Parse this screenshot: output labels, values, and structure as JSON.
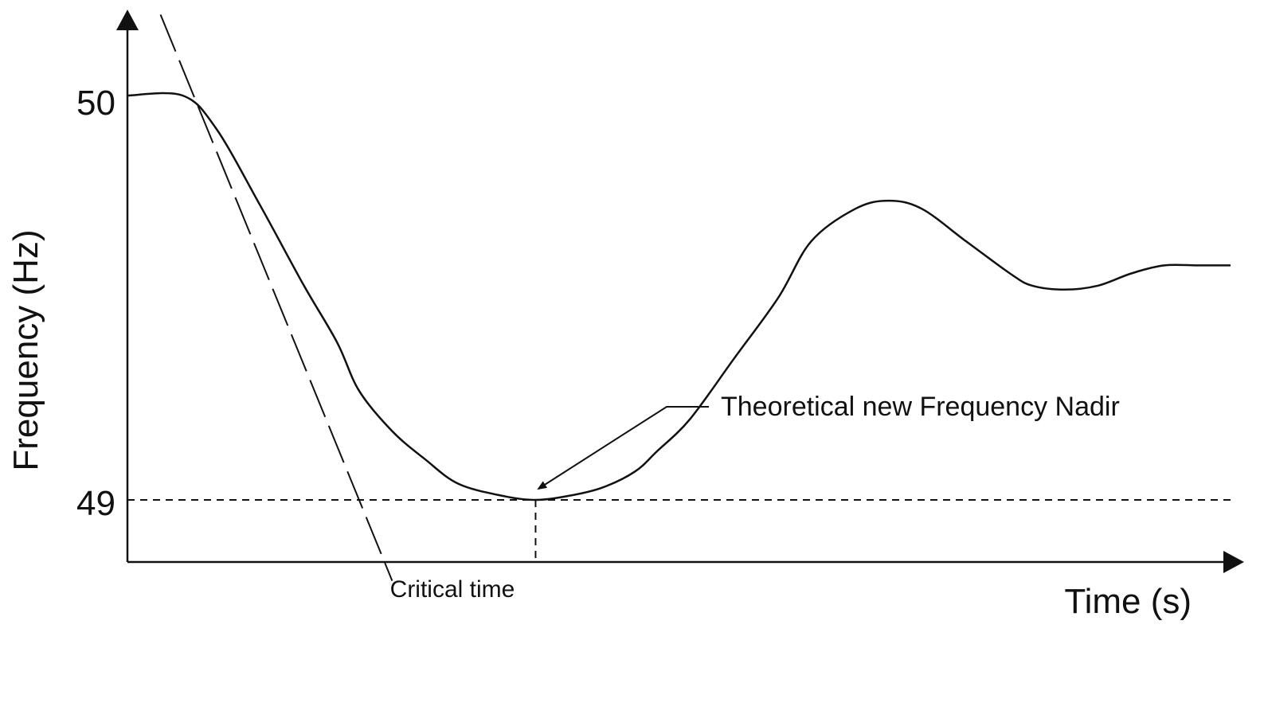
{
  "chart_data": {
    "type": "line",
    "title": "",
    "xlabel": "Time (s)",
    "ylabel": "Frequency (Hz)",
    "yticks": [
      "50",
      "49"
    ],
    "ylim": [
      48.85,
      50.2
    ],
    "grid": false,
    "series": [
      {
        "points": [
          [
            0,
            50
          ],
          [
            0.05,
            50
          ],
          [
            0.08,
            49.92
          ],
          [
            0.12,
            49.73
          ],
          [
            0.16,
            49.53
          ],
          [
            0.19,
            49.39
          ],
          [
            0.21,
            49.27
          ],
          [
            0.24,
            49.17
          ],
          [
            0.27,
            49.1
          ],
          [
            0.3,
            49.04
          ],
          [
            0.34,
            49.01
          ],
          [
            0.37,
            49
          ],
          [
            0.4,
            49.01
          ],
          [
            0.43,
            49.03
          ],
          [
            0.46,
            49.07
          ],
          [
            0.48,
            49.12
          ],
          [
            0.51,
            49.2
          ],
          [
            0.55,
            49.35
          ],
          [
            0.59,
            49.5
          ],
          [
            0.62,
            49.64
          ],
          [
            0.66,
            49.72
          ],
          [
            0.69,
            49.74
          ],
          [
            0.72,
            49.72
          ],
          [
            0.76,
            49.64
          ],
          [
            0.8,
            49.56
          ],
          [
            0.82,
            49.53
          ],
          [
            0.85,
            49.52
          ],
          [
            0.88,
            49.53
          ],
          [
            0.91,
            49.56
          ],
          [
            0.94,
            49.58
          ],
          [
            0.97,
            49.58
          ],
          [
            1,
            49.58
          ]
        ]
      }
    ],
    "annotations": {
      "nadir_label": "Theoretical new Frequency Nadir",
      "critical_time_label": "Critical time",
      "nadir_frequency": 49,
      "critical_time": 0.37
    },
    "tangent_line": [
      [
        0.03,
        50.2
      ],
      [
        0.24,
        48.8
      ]
    ]
  }
}
